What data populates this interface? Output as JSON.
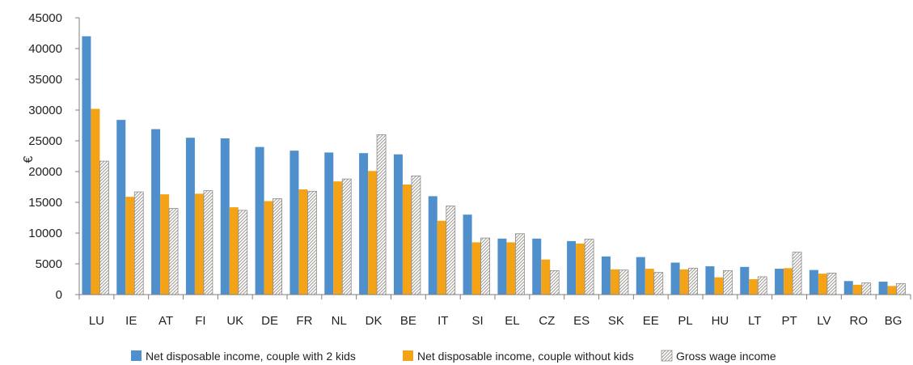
{
  "chart_data": {
    "type": "bar",
    "title": "",
    "xlabel": "",
    "ylabel": "€",
    "ylim": [
      0,
      45000
    ],
    "yticks": [
      0,
      5000,
      10000,
      15000,
      20000,
      25000,
      30000,
      35000,
      40000,
      45000
    ],
    "grid": false,
    "legend_position": "bottom",
    "categories": [
      "LU",
      "IE",
      "AT",
      "FI",
      "UK",
      "DE",
      "FR",
      "NL",
      "DK",
      "BE",
      "IT",
      "SI",
      "EL",
      "CZ",
      "ES",
      "SK",
      "EE",
      "PL",
      "HU",
      "LT",
      "PT",
      "LV",
      "RO",
      "BG"
    ],
    "series": [
      {
        "name": "Net disposable income, couple with 2 kids",
        "color": "#4f8fcb",
        "pattern": "solid",
        "values": [
          42000,
          28400,
          26900,
          25500,
          25400,
          24000,
          23400,
          23100,
          23000,
          22800,
          16000,
          13000,
          9100,
          9100,
          8700,
          6200,
          6100,
          5200,
          4600,
          4500,
          4200,
          4000,
          2200,
          2100
        ]
      },
      {
        "name": "Net disposable income, couple without kids",
        "color": "#f5a316",
        "pattern": "solid",
        "values": [
          30200,
          15900,
          16300,
          16400,
          14200,
          15200,
          17100,
          18400,
          20100,
          17900,
          12000,
          8500,
          8500,
          5700,
          8300,
          4100,
          4200,
          4100,
          2800,
          2500,
          4300,
          3400,
          1600,
          1400
        ]
      },
      {
        "name": "Gross wage income",
        "color": "#ffffff",
        "pattern": "hatch",
        "values": [
          21700,
          16700,
          14000,
          16900,
          13700,
          15600,
          16800,
          18800,
          26000,
          19300,
          14400,
          9200,
          9900,
          3900,
          9000,
          4000,
          3600,
          4300,
          3900,
          2900,
          6900,
          3500,
          1900,
          1800
        ]
      }
    ]
  }
}
